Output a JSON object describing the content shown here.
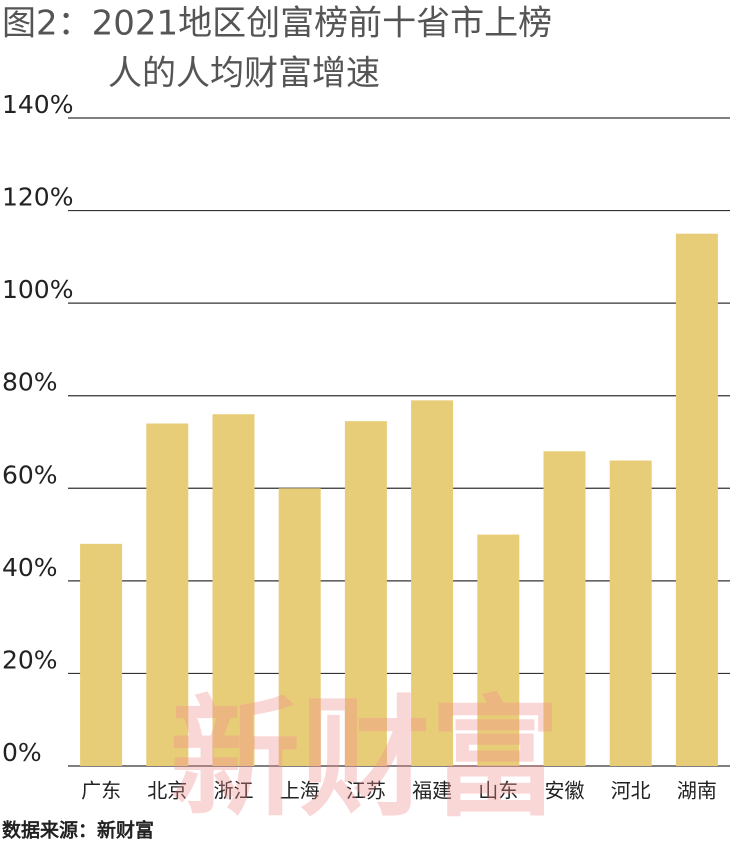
{
  "chart_data": {
    "type": "bar",
    "title": [
      "图2：2021地区创富榜前十省市上榜",
      "人的人均财富增速"
    ],
    "categories": [
      "广东",
      "北京",
      "浙江",
      "上海",
      "江苏",
      "福建",
      "山东",
      "安徽",
      "河北",
      "湖南"
    ],
    "values": [
      48,
      74,
      76,
      60,
      74.5,
      79,
      50,
      68,
      66,
      115
    ],
    "color": "#e8cd78",
    "ylim": [
      0,
      140
    ],
    "yticks": [
      {
        "value": 0,
        "label": "0%"
      },
      {
        "value": 20,
        "label": "20%"
      },
      {
        "value": 40,
        "label": "40%"
      },
      {
        "value": 60,
        "label": "60%"
      },
      {
        "value": 80,
        "label": "80%"
      },
      {
        "value": 100,
        "label": "100%"
      },
      {
        "value": 120,
        "label": "120%"
      },
      {
        "value": 140,
        "label": "140%"
      }
    ],
    "grid": true,
    "source": "数据来源：新财富",
    "watermark": "新财富"
  }
}
